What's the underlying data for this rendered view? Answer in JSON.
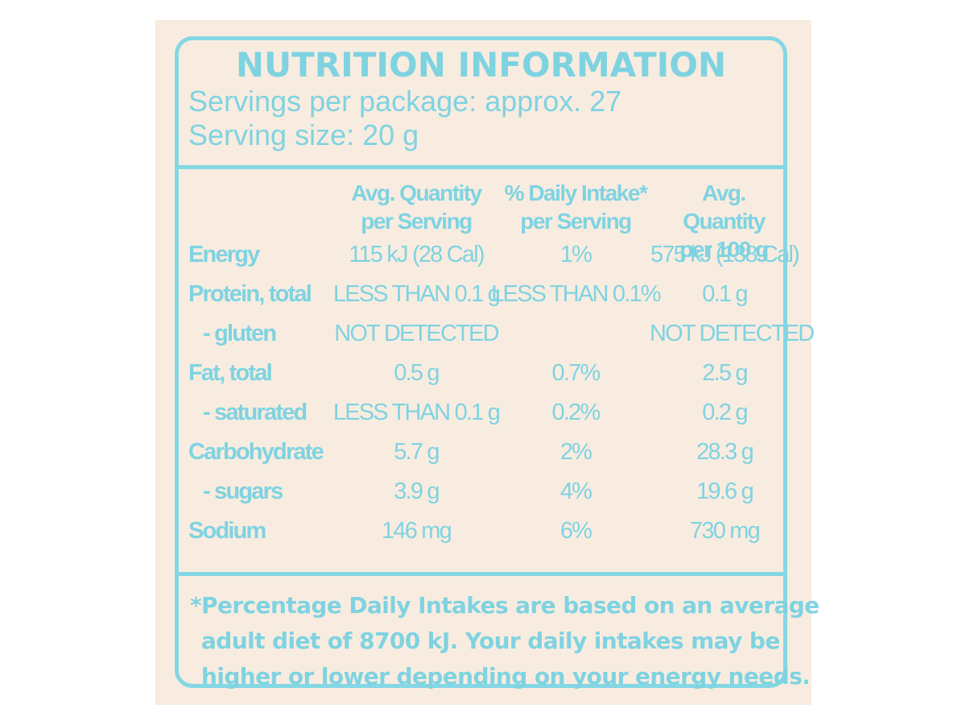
{
  "label": {
    "title": "NUTRITION INFORMATION",
    "servings_per_package": "Servings per package: approx. 27",
    "serving_size": "Serving size: 20 g",
    "columns": [
      {
        "line1": "Avg. Quantity",
        "line2": "per Serving"
      },
      {
        "line1": "% Daily Intake*",
        "line2": "per Serving"
      },
      {
        "line1": "Avg. Quantity",
        "line2": "per 100 g"
      }
    ],
    "rows": [
      {
        "name": "Energy",
        "per_serving": "115 kJ (28 Cal)",
        "daily_intake": "1%",
        "per_100g": "575 kJ (138 Cal)"
      },
      {
        "name": "Protein, total",
        "per_serving": "LESS THAN 0.1 g",
        "daily_intake": "LESS THAN 0.1%",
        "per_100g": "0.1 g"
      },
      {
        "name": "- gluten",
        "per_serving": "NOT DETECTED",
        "daily_intake": "",
        "per_100g": "NOT DETECTED"
      },
      {
        "name": "Fat, total",
        "per_serving": "0.5 g",
        "daily_intake": "0.7%",
        "per_100g": "2.5 g"
      },
      {
        "name": "- saturated",
        "per_serving": "LESS THAN 0.1 g",
        "daily_intake": "0.2%",
        "per_100g": "0.2 g"
      },
      {
        "name": "Carbohydrate",
        "per_serving": "5.7 g",
        "daily_intake": "2%",
        "per_100g": "28.3 g"
      },
      {
        "name": "- sugars",
        "per_serving": "3.9 g",
        "daily_intake": "4%",
        "per_100g": "19.6 g"
      },
      {
        "name": "Sodium",
        "per_serving": "146 mg",
        "daily_intake": "6%",
        "per_100g": "730 mg"
      }
    ],
    "footnote": [
      "*Percentage Daily Intakes are based on an average",
      "adult diet of 8700 kJ. Your daily intakes may be",
      "higher or lower depending on your energy needs."
    ]
  },
  "colors": {
    "text": "#7fd3e1",
    "border": "#84d7e4",
    "background": "#f8ece0"
  }
}
